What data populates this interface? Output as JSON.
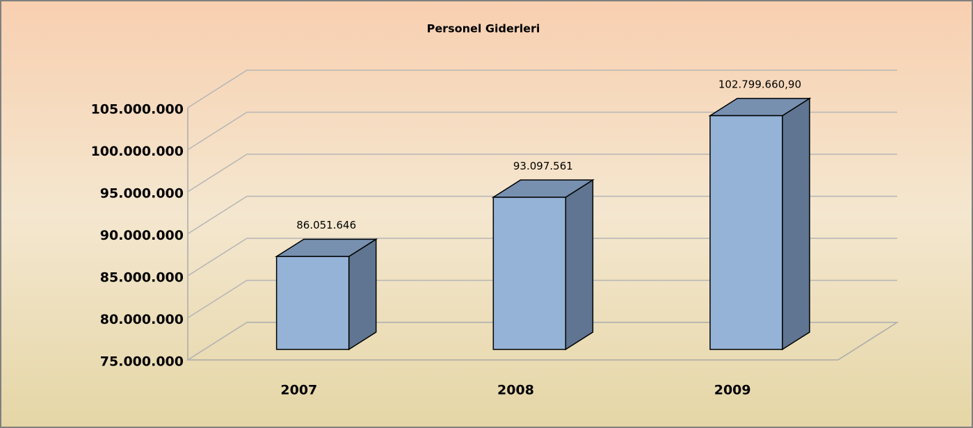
{
  "chart_data": {
    "type": "bar3d",
    "title": "Personel Giderleri",
    "categories": [
      "2007",
      "2008",
      "2009"
    ],
    "values": [
      86051646,
      93097561,
      102799660.9
    ],
    "value_labels": [
      "86.051.646",
      "93.097.561",
      "102.799.660,90"
    ],
    "color": "#95b3d7",
    "ylim": [
      75000000,
      105000000
    ],
    "yticks": [
      {
        "value": 75000000,
        "label": "75.000.000"
      },
      {
        "value": 80000000,
        "label": "80.000.000"
      },
      {
        "value": 85000000,
        "label": "85.000.000"
      },
      {
        "value": 90000000,
        "label": "90.000.000"
      },
      {
        "value": 95000000,
        "label": "95.000.000"
      },
      {
        "value": 100000000,
        "label": "100.000.000"
      },
      {
        "value": 105000000,
        "label": "105.000.000"
      }
    ],
    "grid": true
  }
}
